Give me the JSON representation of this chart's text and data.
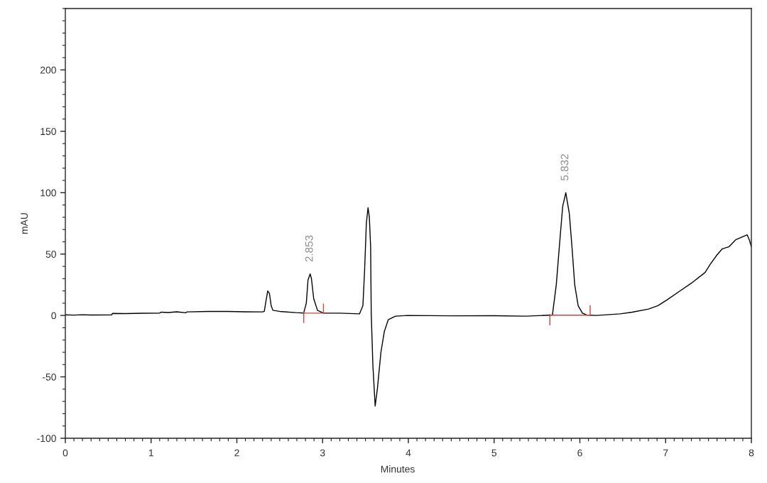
{
  "chart_data": {
    "type": "line",
    "xlabel": "Minutes",
    "ylabel": "mAU",
    "xlim": [
      0,
      8
    ],
    "ylim": [
      -100,
      250
    ],
    "xticks": [
      0,
      1,
      2,
      3,
      4,
      5,
      6,
      7,
      8
    ],
    "yticks": [
      -100,
      -50,
      0,
      50,
      100,
      150,
      200
    ],
    "grid": false,
    "annotations": [
      {
        "text": "2.853",
        "x": 2.853,
        "y": 33.8
      },
      {
        "text": "5.832",
        "x": 5.832,
        "y": 100
      }
    ],
    "series": [
      {
        "color": "#000000",
        "x": [
          0.0,
          0.1,
          0.2,
          0.3,
          0.54,
          0.55,
          0.7,
          0.9,
          1.1,
          1.12,
          1.2,
          1.3,
          1.4,
          1.42,
          1.66,
          1.9,
          2.1,
          2.3,
          2.32,
          2.34,
          2.36,
          2.38,
          2.4,
          2.42,
          2.5,
          2.69,
          2.78,
          2.81,
          2.83,
          2.855,
          2.87,
          2.896,
          2.94,
          3.01,
          3.2,
          3.43,
          3.47,
          3.49,
          3.51,
          3.53,
          3.545,
          3.56,
          3.567,
          3.586,
          3.613,
          3.64,
          3.68,
          3.72,
          3.765,
          3.85,
          3.99,
          4.5,
          5.0,
          5.37,
          5.68,
          5.725,
          5.77,
          5.8,
          5.836,
          5.877,
          5.91,
          5.94,
          5.98,
          6.03,
          6.08,
          6.19,
          6.47,
          6.61,
          6.8,
          6.91,
          7.02,
          7.16,
          7.3,
          7.46,
          7.52,
          7.6,
          7.66,
          7.74,
          7.82,
          7.95,
          7.975,
          8.0
        ],
        "values": [
          0.5,
          0.3,
          0.6,
          0.4,
          0.5,
          1.7,
          1.5,
          1.8,
          2.0,
          2.7,
          2.4,
          3.0,
          2.2,
          2.9,
          3.3,
          3.3,
          3.0,
          2.9,
          3.3,
          12,
          20,
          18,
          8,
          4.2,
          3.3,
          2.3,
          2.0,
          10,
          29,
          33.8,
          30,
          13.8,
          4.2,
          1.9,
          1.9,
          1.3,
          8,
          37,
          75,
          87.8,
          80,
          56,
          2.3,
          -40,
          -73.8,
          -59,
          -30,
          -13,
          -3.5,
          -0.6,
          0,
          -0.3,
          -0.2,
          -0.6,
          0.4,
          25,
          64,
          89,
          100,
          83,
          54,
          25,
          8,
          1.9,
          0.4,
          0,
          1.3,
          2.7,
          5.2,
          8,
          12.9,
          19.6,
          26.3,
          35,
          41.7,
          49.4,
          54.2,
          56,
          61.8,
          65.7,
          61.8,
          56
        ]
      },
      {
        "type": "line",
        "color": "#cc4444",
        "x": [
          2.78,
          2.78,
          2.78,
          3.01,
          3.01
        ],
        "values": [
          -5.8,
          3.5,
          1.9,
          1.9,
          9.4
        ]
      },
      {
        "type": "line",
        "color": "#cc4444",
        "x": [
          5.65,
          5.65,
          5.65,
          6.12,
          6.12
        ],
        "values": [
          -7.7,
          1.0,
          0.2,
          0.2,
          8.1
        ]
      }
    ]
  }
}
